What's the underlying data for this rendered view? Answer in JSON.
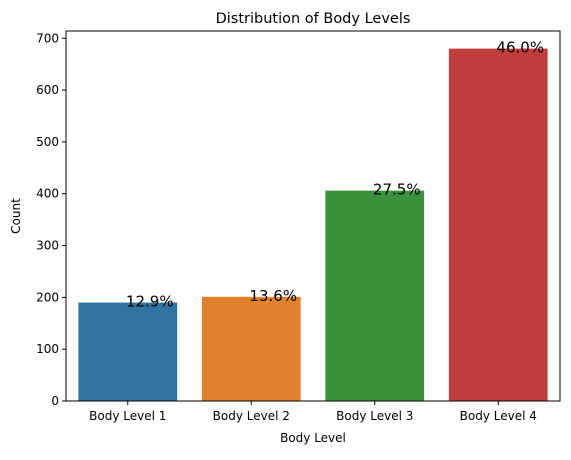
{
  "chart_data": {
    "type": "bar",
    "title": "Distribution of Body Levels",
    "xlabel": "Body Level",
    "ylabel": "Count",
    "categories": [
      "Body Level 1",
      "Body Level 2",
      "Body Level 3",
      "Body Level 4"
    ],
    "values": [
      190,
      201,
      406,
      680
    ],
    "data_labels": [
      "12.9%",
      "13.6%",
      "27.5%",
      "46.0%"
    ],
    "colors": [
      "#3274a1",
      "#e1812c",
      "#3a923a",
      "#c03d3e"
    ],
    "ylim": [
      0,
      714
    ],
    "yticks": [
      0,
      100,
      200,
      300,
      400,
      500,
      600,
      700
    ],
    "grid": false,
    "legend": "none"
  }
}
